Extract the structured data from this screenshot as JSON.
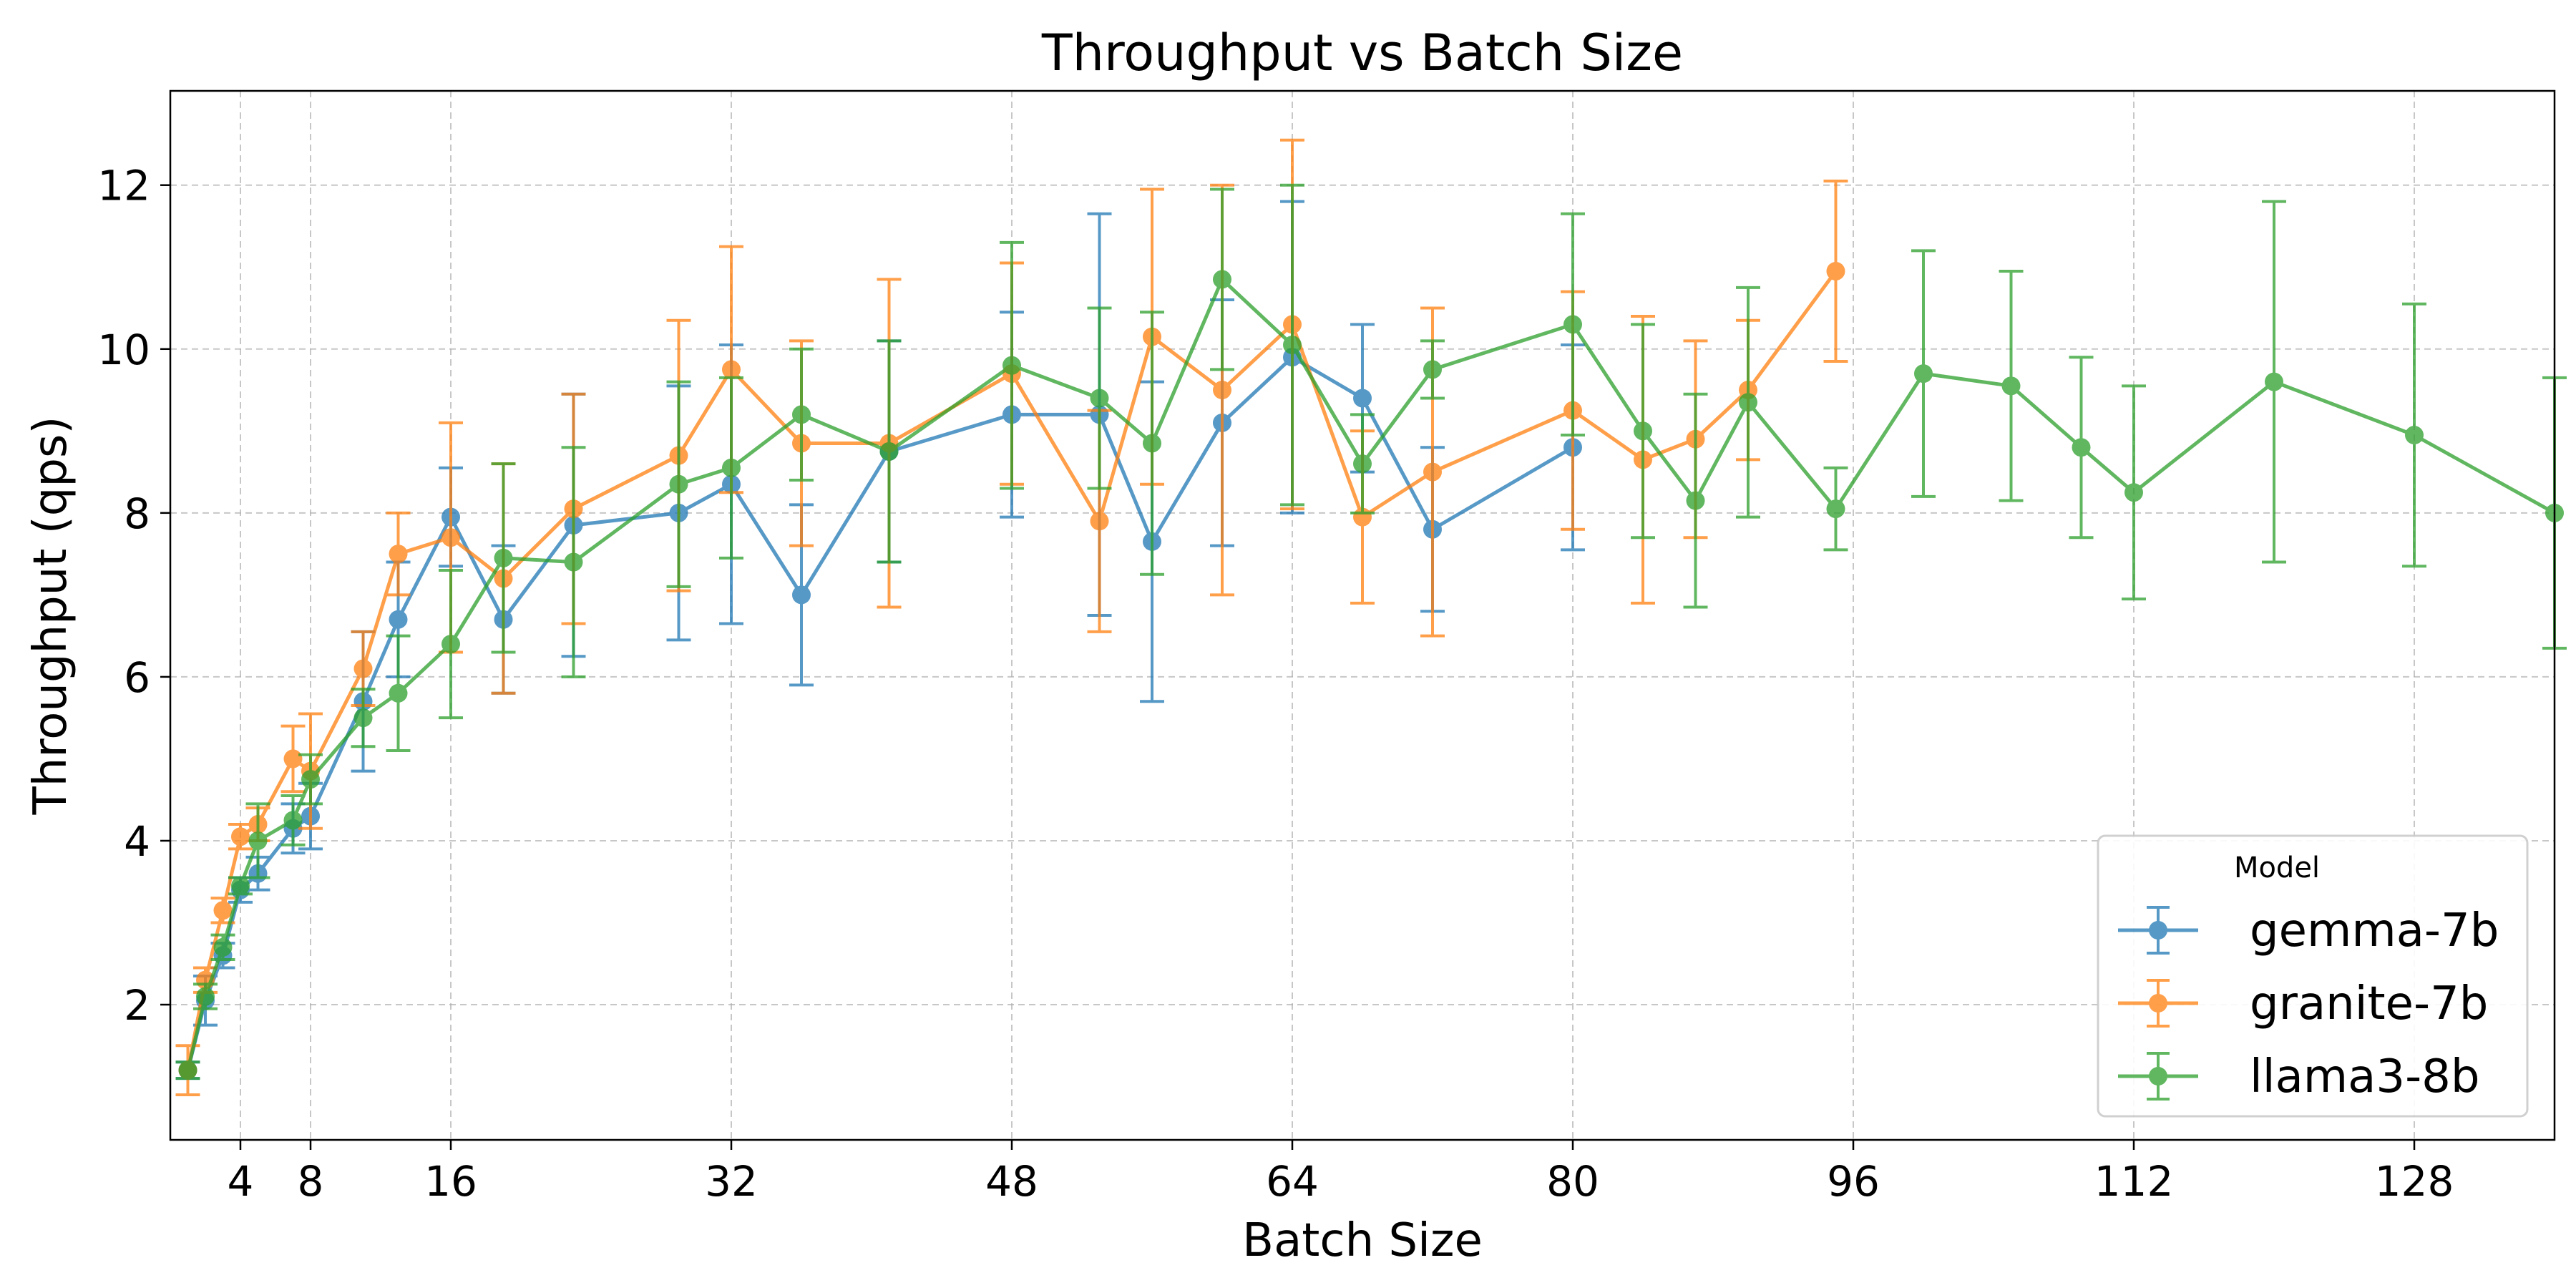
{
  "chart_data": {
    "type": "line",
    "title": "Throughput vs Batch Size",
    "xlabel": "Batch Size",
    "ylabel": "Throughput (qps)",
    "xlim": [
      0,
      136
    ],
    "ylim": [
      0.35,
      13.15
    ],
    "xticks": [
      4,
      8,
      16,
      32,
      48,
      64,
      80,
      96,
      112,
      128
    ],
    "yticks": [
      2,
      4,
      6,
      8,
      10,
      12
    ],
    "grid": true,
    "legend": {
      "title": "Model",
      "placement": "lower right"
    },
    "series": [
      {
        "name": "gemma-7b",
        "color": "#1f77b4",
        "x": [
          1,
          2,
          3,
          4,
          5,
          7,
          8,
          11,
          13,
          16,
          19,
          23,
          29,
          32,
          36,
          41,
          48,
          53,
          56,
          60,
          64,
          68,
          72,
          80
        ],
        "y": [
          1.2,
          2.05,
          2.6,
          3.4,
          3.6,
          4.15,
          4.3,
          5.7,
          6.7,
          7.95,
          6.7,
          7.85,
          8.0,
          8.35,
          7.0,
          8.75,
          9.2,
          9.2,
          7.65,
          9.1,
          9.9,
          9.4,
          7.8,
          8.8
        ],
        "err": [
          0.1,
          0.3,
          0.15,
          0.15,
          0.2,
          0.3,
          0.4,
          0.85,
          0.7,
          0.6,
          0.9,
          1.6,
          1.55,
          1.7,
          1.1,
          1.35,
          1.25,
          2.45,
          1.95,
          1.5,
          1.9,
          0.9,
          1.0,
          1.25
        ]
      },
      {
        "name": "granite-7b",
        "color": "#ff7f0e",
        "x": [
          1,
          2,
          3,
          4,
          5,
          7,
          8,
          11,
          13,
          16,
          19,
          23,
          29,
          32,
          36,
          41,
          48,
          53,
          56,
          60,
          64,
          68,
          72,
          80,
          84,
          87,
          90,
          95
        ],
        "y": [
          1.2,
          2.3,
          3.15,
          4.05,
          4.2,
          5.0,
          4.85,
          6.1,
          7.5,
          7.7,
          7.2,
          8.05,
          8.7,
          9.75,
          8.85,
          8.85,
          9.7,
          7.9,
          10.15,
          9.5,
          10.3,
          7.95,
          8.5,
          9.25,
          8.65,
          8.9,
          9.5,
          10.95
        ],
        "err": [
          0.3,
          0.15,
          0.15,
          0.15,
          0.2,
          0.4,
          0.7,
          0.45,
          0.5,
          1.4,
          1.4,
          1.4,
          1.65,
          1.5,
          1.25,
          2.0,
          1.35,
          1.35,
          1.8,
          2.5,
          2.25,
          1.05,
          2.0,
          1.45,
          1.75,
          1.2,
          0.85,
          1.1
        ]
      },
      {
        "name": "llama3-8b",
        "color": "#2ca02c",
        "x": [
          1,
          2,
          3,
          4,
          5,
          7,
          8,
          11,
          13,
          16,
          19,
          23,
          29,
          32,
          36,
          41,
          48,
          53,
          56,
          60,
          64,
          68,
          72,
          80,
          84,
          87,
          90,
          95,
          100,
          105,
          109,
          112,
          120,
          128,
          136
        ],
        "y": [
          1.2,
          2.1,
          2.7,
          3.45,
          4.0,
          4.25,
          4.75,
          5.5,
          5.8,
          6.4,
          7.45,
          7.4,
          8.35,
          8.55,
          9.2,
          8.75,
          9.8,
          9.4,
          8.85,
          10.85,
          10.05,
          8.6,
          9.75,
          10.3,
          9.0,
          8.15,
          9.35,
          8.05,
          9.7,
          9.55,
          8.8,
          8.25,
          9.6,
          8.95,
          8.0
        ],
        "err": [
          0.1,
          0.15,
          0.15,
          0.1,
          0.45,
          0.3,
          0.3,
          0.35,
          0.7,
          0.9,
          1.15,
          1.4,
          1.25,
          1.1,
          0.8,
          1.35,
          1.5,
          1.1,
          1.6,
          1.1,
          1.95,
          0.6,
          0.35,
          1.35,
          1.3,
          1.3,
          1.4,
          0.5,
          1.5,
          1.4,
          1.1,
          1.3,
          2.2,
          1.6,
          1.65
        ]
      }
    ]
  }
}
